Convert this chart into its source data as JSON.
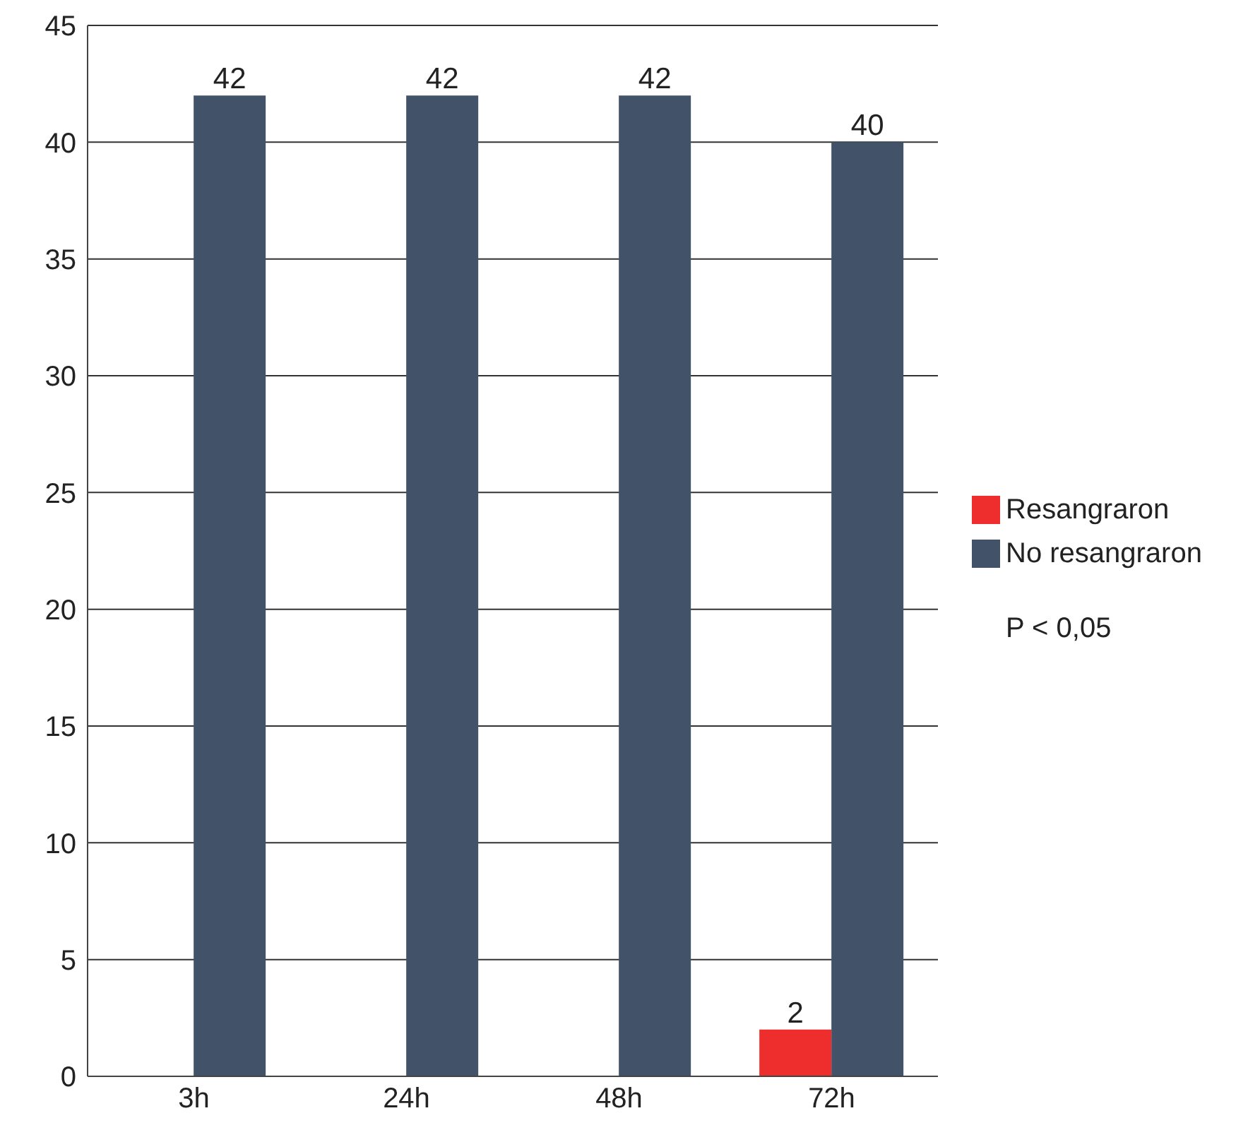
{
  "chart_data": {
    "type": "bar",
    "categories": [
      "3h",
      "24h",
      "48h",
      "72h"
    ],
    "series": [
      {
        "name": "Resangraron",
        "color": "#ee2d2d",
        "values": [
          null,
          null,
          null,
          2
        ]
      },
      {
        "name": "No resangraron",
        "color": "#425369",
        "values": [
          42,
          42,
          42,
          40
        ]
      }
    ],
    "ylim": [
      0,
      45
    ],
    "yticks": [
      0,
      5,
      10,
      15,
      20,
      25,
      30,
      35,
      40,
      45
    ],
    "grid": "y",
    "legend": "right",
    "data_labels": true,
    "annotations": [
      "P < 0,05"
    ]
  }
}
